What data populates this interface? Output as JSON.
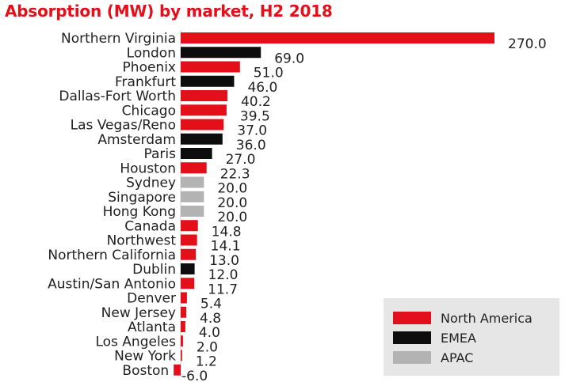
{
  "chart_data": {
    "type": "bar",
    "orientation": "horizontal",
    "title": "Absorption (MW) by market, H2 2018",
    "xlabel": "",
    "ylabel": "",
    "grid": false,
    "legend_position": "bottom-right",
    "categories": [
      "Northern Virginia",
      "London",
      "Phoenix",
      "Frankfurt",
      "Dallas-Fort Worth",
      "Chicago",
      "Las Vegas/Reno",
      "Amsterdam",
      "Paris",
      "Houston",
      "Sydney",
      "Singapore",
      "Hong Kong",
      "Canada",
      "Northwest",
      "Northern California",
      "Dublin",
      "Austin/San Antonio",
      "Denver",
      "New Jersey",
      "Atlanta",
      "Los Angeles",
      "New York",
      "Boston"
    ],
    "values": [
      270.0,
      69.0,
      51.0,
      46.0,
      40.2,
      39.5,
      37.0,
      36.0,
      27.0,
      22.3,
      20.0,
      20.0,
      20.0,
      14.8,
      14.1,
      13.0,
      12.0,
      11.7,
      5.4,
      4.8,
      4.0,
      2.0,
      1.2,
      -6.0
    ],
    "value_labels": [
      "270.0",
      "69.0",
      "51.0",
      "46.0",
      "40.2",
      "39.5",
      "37.0",
      "36.0",
      "27.0",
      "22.3",
      "20.0",
      "20.0",
      "20.0",
      "14.8",
      "14.1",
      "13.0",
      "12.0",
      "11.7",
      "5.4",
      "4.8",
      "4.0",
      "2.0",
      "1.2",
      "-6.0"
    ],
    "regions": [
      "North America",
      "EMEA",
      "North America",
      "EMEA",
      "North America",
      "North America",
      "North America",
      "EMEA",
      "EMEA",
      "North America",
      "APAC",
      "APAC",
      "APAC",
      "North America",
      "North America",
      "North America",
      "EMEA",
      "North America",
      "North America",
      "North America",
      "North America",
      "North America",
      "North America",
      "North America"
    ],
    "legend": [
      {
        "name": "North America",
        "color": "#e3101a"
      },
      {
        "name": "EMEA",
        "color": "#0d0d0d"
      },
      {
        "name": "APAC",
        "color": "#b3b3b3"
      }
    ],
    "xlim": [
      -6,
      270
    ]
  }
}
